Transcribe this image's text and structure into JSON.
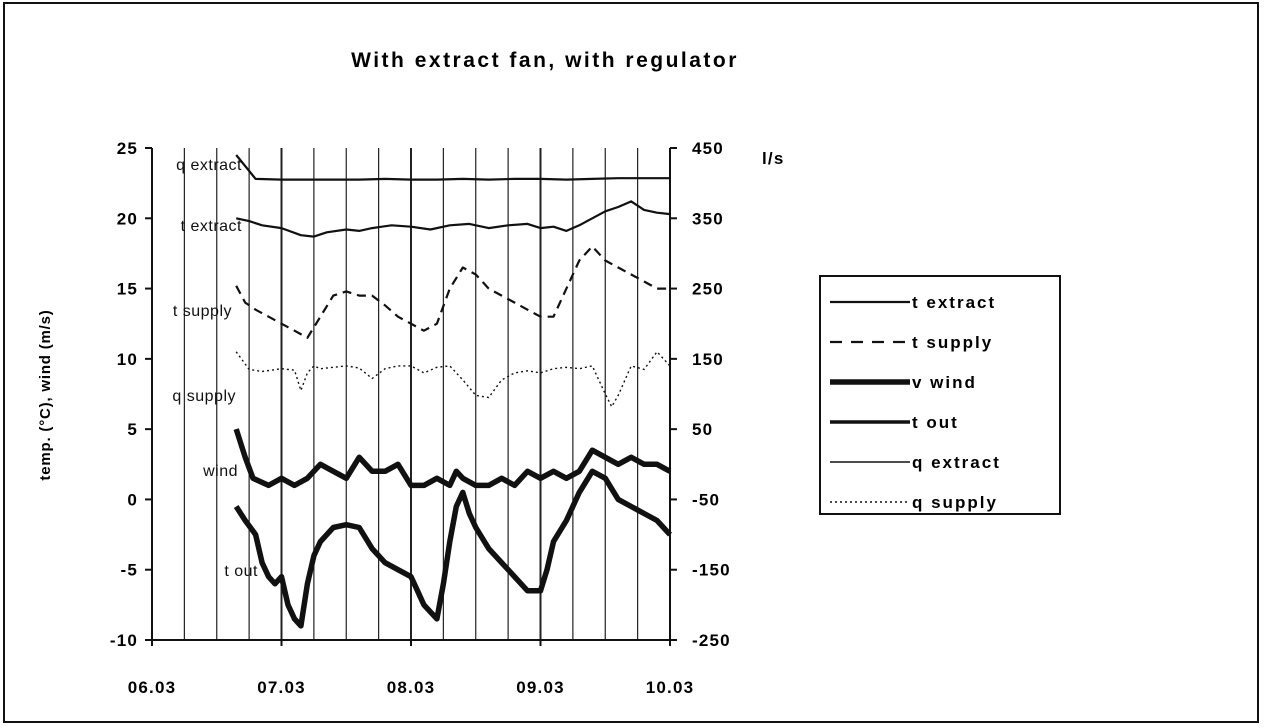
{
  "chart_data": {
    "type": "line",
    "title": "With extract fan, with regulator",
    "ylabel": "temp. (°C), wind (m/s)",
    "y2label": "l/s",
    "ylim": [
      -10,
      25
    ],
    "y2lim": [
      -250,
      450
    ],
    "xlim": [
      "06.03",
      "10.03"
    ],
    "x_ticks": [
      "06.03",
      "07.03",
      "08.03",
      "09.03",
      "10.03"
    ],
    "y_ticks": [
      "25",
      "20",
      "15",
      "10",
      "5",
      "0",
      "-5",
      "-10"
    ],
    "y2_ticks": [
      "450",
      "350",
      "250",
      "150",
      "50",
      "-50",
      "-150",
      "-250"
    ],
    "grid": "vertical",
    "legend_position": "right",
    "annotations": [
      "q extract",
      "t extract",
      "t supply",
      "q supply",
      "wind",
      "t out"
    ],
    "series": [
      {
        "name": "t extract",
        "axis": "left",
        "style": "solid",
        "x": [
          0.65,
          0.75,
          0.85,
          1.0,
          1.15,
          1.25,
          1.35,
          1.5,
          1.6,
          1.7,
          1.85,
          2.0,
          2.15,
          2.3,
          2.45,
          2.6,
          2.75,
          2.9,
          3.0,
          3.1,
          3.2,
          3.3,
          3.4,
          3.5,
          3.6,
          3.7,
          3.8,
          3.9,
          4.0
        ],
        "y": [
          20.0,
          19.8,
          19.5,
          19.3,
          18.8,
          18.7,
          19.0,
          19.2,
          19.1,
          19.3,
          19.5,
          19.4,
          19.2,
          19.5,
          19.6,
          19.3,
          19.5,
          19.6,
          19.3,
          19.4,
          19.1,
          19.5,
          20.0,
          20.5,
          20.8,
          21.2,
          20.6,
          20.4,
          20.3
        ]
      },
      {
        "name": "t supply",
        "axis": "left",
        "style": "dashed",
        "x": [
          0.65,
          0.72,
          0.8,
          0.9,
          1.0,
          1.1,
          1.2,
          1.3,
          1.4,
          1.5,
          1.6,
          1.7,
          1.8,
          1.9,
          2.0,
          2.1,
          2.2,
          2.3,
          2.4,
          2.5,
          2.6,
          2.7,
          2.8,
          2.9,
          3.0,
          3.1,
          3.2,
          3.3,
          3.4,
          3.5,
          3.6,
          3.7,
          3.8,
          3.9,
          4.0
        ],
        "y": [
          15.2,
          14.0,
          13.5,
          13.0,
          12.5,
          12.0,
          11.5,
          13.0,
          14.5,
          14.8,
          14.5,
          14.5,
          13.8,
          13.0,
          12.5,
          12.0,
          12.5,
          15.0,
          16.5,
          16.0,
          15.0,
          14.5,
          14.0,
          13.5,
          13.0,
          13.0,
          15.0,
          17.0,
          18.0,
          17.0,
          16.5,
          16.0,
          15.5,
          15.0,
          15.0
        ]
      },
      {
        "name": "v wind",
        "axis": "left",
        "style": "thick",
        "x": [
          0.65,
          0.72,
          0.78,
          0.9,
          1.0,
          1.1,
          1.2,
          1.25,
          1.3,
          1.4,
          1.5,
          1.6,
          1.7,
          1.8,
          1.9,
          2.0,
          2.1,
          2.2,
          2.3,
          2.35,
          2.4,
          2.5,
          2.6,
          2.7,
          2.8,
          2.9,
          3.0,
          3.1,
          3.2,
          3.3,
          3.4,
          3.5,
          3.6,
          3.7,
          3.8,
          3.9,
          4.0
        ],
        "y": [
          5.0,
          3.0,
          1.5,
          1.0,
          1.5,
          1.0,
          1.5,
          2.0,
          2.5,
          2.0,
          1.5,
          3.0,
          2.0,
          2.0,
          2.5,
          1.0,
          1.0,
          1.5,
          1.0,
          2.0,
          1.5,
          1.0,
          1.0,
          1.5,
          1.0,
          2.0,
          1.5,
          2.0,
          1.5,
          2.0,
          3.5,
          3.0,
          2.5,
          3.0,
          2.5,
          2.5,
          2.0
        ]
      },
      {
        "name": "t out",
        "axis": "left",
        "style": "thick",
        "x": [
          0.65,
          0.72,
          0.8,
          0.85,
          0.9,
          0.95,
          1.0,
          1.05,
          1.1,
          1.15,
          1.2,
          1.25,
          1.3,
          1.4,
          1.5,
          1.6,
          1.7,
          1.8,
          1.9,
          2.0,
          2.05,
          2.1,
          2.15,
          2.2,
          2.25,
          2.3,
          2.35,
          2.4,
          2.45,
          2.5,
          2.6,
          2.7,
          2.8,
          2.9,
          3.0,
          3.05,
          3.1,
          3.2,
          3.3,
          3.4,
          3.5,
          3.6,
          3.7,
          3.8,
          3.9,
          4.0
        ],
        "y": [
          -0.5,
          -1.5,
          -2.5,
          -4.5,
          -5.5,
          -6.0,
          -5.5,
          -7.5,
          -8.5,
          -9.0,
          -6.0,
          -4.0,
          -3.0,
          -2.0,
          -1.8,
          -2.0,
          -3.5,
          -4.5,
          -5.0,
          -5.5,
          -6.5,
          -7.5,
          -8.0,
          -8.5,
          -6.0,
          -3.0,
          -0.5,
          0.5,
          -1.0,
          -2.0,
          -3.5,
          -4.5,
          -5.5,
          -6.5,
          -6.5,
          -5.0,
          -3.0,
          -1.5,
          0.5,
          2.0,
          1.5,
          0.0,
          -0.5,
          -1.0,
          -1.5,
          -2.5
        ]
      },
      {
        "name": "q extract",
        "axis": "right",
        "style": "solid",
        "x": [
          0.65,
          0.8,
          1.0,
          1.2,
          1.4,
          1.6,
          1.8,
          2.0,
          2.2,
          2.4,
          2.6,
          2.8,
          3.0,
          3.2,
          3.4,
          3.6,
          3.8,
          4.0
        ],
        "y": [
          440,
          406,
          405,
          405,
          405,
          405,
          406,
          405,
          405,
          406,
          405,
          406,
          406,
          405,
          406,
          407,
          407,
          407
        ]
      },
      {
        "name": "q supply",
        "axis": "right",
        "style": "dotted",
        "x": [
          0.65,
          0.75,
          0.85,
          1.0,
          1.1,
          1.15,
          1.2,
          1.25,
          1.3,
          1.4,
          1.5,
          1.6,
          1.7,
          1.8,
          1.9,
          2.0,
          2.1,
          2.2,
          2.3,
          2.4,
          2.5,
          2.6,
          2.7,
          2.8,
          2.9,
          3.0,
          3.1,
          3.2,
          3.3,
          3.4,
          3.5,
          3.55,
          3.6,
          3.7,
          3.8,
          3.9,
          4.0
        ],
        "y": [
          160,
          135,
          132,
          136,
          134,
          105,
          130,
          140,
          136,
          138,
          140,
          137,
          122,
          136,
          140,
          140,
          130,
          138,
          140,
          120,
          98,
          95,
          120,
          130,
          133,
          130,
          136,
          138,
          136,
          140,
          100,
          82,
          98,
          140,
          135,
          160,
          140
        ]
      }
    ]
  },
  "legend": [
    {
      "label": "t extract",
      "style": "solid"
    },
    {
      "label": "t supply",
      "style": "dashed"
    },
    {
      "label": "v wind",
      "style": "thick"
    },
    {
      "label": "t out",
      "style": "solid-medium"
    },
    {
      "label": "q extract",
      "style": "thin"
    },
    {
      "label": "q supply",
      "style": "dotted"
    }
  ]
}
